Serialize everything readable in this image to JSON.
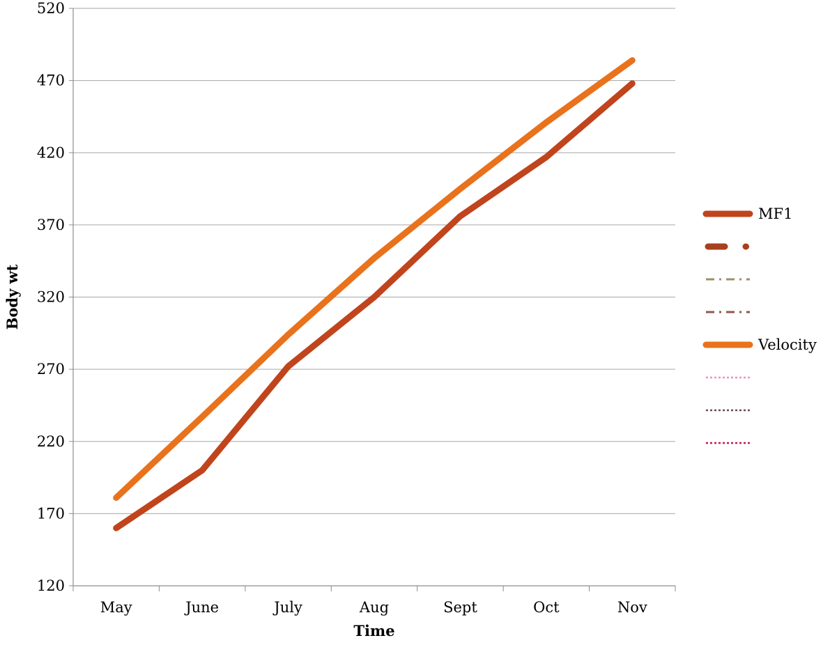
{
  "chart_data": {
    "type": "line",
    "title": "",
    "xlabel": "Time",
    "ylabel": "Body wt",
    "categories": [
      "May",
      "June",
      "July",
      "Aug",
      "Sept",
      "Oct",
      "Nov"
    ],
    "ylim": [
      120,
      520
    ],
    "yticks": [
      120,
      170,
      220,
      270,
      320,
      370,
      420,
      470,
      520
    ],
    "grid": "horizontal",
    "legend_position": "right",
    "series": [
      {
        "name": "MF1",
        "values": [
          160,
          200,
          272,
          320,
          376,
          417,
          468
        ],
        "color": "#c0441c",
        "style": "solid"
      },
      {
        "name": "",
        "values": null,
        "color": "#a93f1d",
        "style": "long-dash-dot"
      },
      {
        "name": "",
        "values": null,
        "color": "#9c8f6b",
        "style": "dash-dot"
      },
      {
        "name": "",
        "values": null,
        "color": "#8e5a4e",
        "style": "dash-dot"
      },
      {
        "name": "Velocity",
        "values": [
          181,
          237,
          294,
          347,
          395,
          441,
          484
        ],
        "color": "#e9721c",
        "style": "solid"
      },
      {
        "name": "",
        "values": null,
        "color": "#f08fc6",
        "style": "dotted"
      },
      {
        "name": "",
        "values": null,
        "color": "#6b4a55",
        "style": "dotted"
      },
      {
        "name": "",
        "values": null,
        "color": "#c0174f",
        "style": "dotted"
      }
    ]
  }
}
